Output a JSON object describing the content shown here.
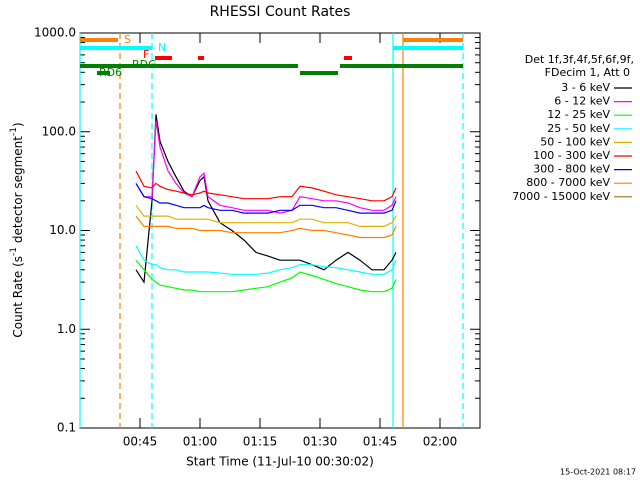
{
  "chart_data": {
    "type": "line",
    "title": "RHESSI Count Rates",
    "xlabel": "Start Time (11-Jul-10 00:30:02)",
    "ylabel": [
      "Count Rate (s",
      "-1",
      " detector segment",
      "-1",
      ")"
    ],
    "ylog": true,
    "xlim": [
      0,
      100
    ],
    "ylim": [
      0.1,
      1000
    ],
    "xticks": [
      {
        "value": 15,
        "label": "00:45"
      },
      {
        "value": 30,
        "label": "01:00"
      },
      {
        "value": 45,
        "label": "01:15"
      },
      {
        "value": 60,
        "label": "01:30"
      },
      {
        "value": 75,
        "label": "01:45"
      },
      {
        "value": 90,
        "label": "02:00"
      }
    ],
    "yticks": [
      {
        "value": 0.1,
        "label": "0.1"
      },
      {
        "value": 1,
        "label": "1.0"
      },
      {
        "value": 10,
        "label": "10.0"
      },
      {
        "value": 100,
        "label": "100.0"
      },
      {
        "value": 1000,
        "label": "1000.0"
      }
    ],
    "legend_header": [
      "Det 1f,3f,4f,5f,6f,9f,",
      "FDecim 1, Att 0"
    ],
    "footer": "15-Oct-2021 08:17",
    "x": [
      14,
      16,
      18,
      19,
      20,
      22,
      24,
      26,
      28,
      30,
      31,
      32,
      35,
      38,
      41,
      44,
      47,
      50,
      53,
      55,
      58,
      61,
      64,
      67,
      70,
      73,
      76,
      78,
      79
    ],
    "series": [
      {
        "name": "3 - 6 keV",
        "color": "#000000",
        "values": [
          4,
          3,
          20,
          150,
          80,
          50,
          35,
          25,
          22,
          32,
          35,
          20,
          12,
          10,
          8,
          6,
          5.5,
          5,
          5,
          5,
          4.5,
          4,
          5,
          6,
          5,
          4,
          4,
          5,
          6
        ]
      },
      {
        "name": "6 - 12 keV",
        "color": "#ff00ff",
        "values": [
          30,
          22,
          22,
          130,
          70,
          40,
          30,
          24,
          22,
          35,
          38,
          22,
          18,
          17,
          16,
          16,
          16,
          15,
          16,
          22,
          21,
          20,
          20,
          19,
          17,
          16,
          16,
          18,
          22
        ]
      },
      {
        "name": "12 - 25 keV",
        "color": "#00ff00",
        "values": [
          5,
          4,
          3.2,
          3,
          2.8,
          2.7,
          2.6,
          2.5,
          2.5,
          2.4,
          2.4,
          2.4,
          2.4,
          2.4,
          2.5,
          2.6,
          2.7,
          3,
          3.3,
          3.8,
          3.5,
          3.2,
          2.9,
          2.7,
          2.5,
          2.4,
          2.4,
          2.6,
          3.2
        ]
      },
      {
        "name": "25 - 50 keV",
        "color": "#00ffff",
        "values": [
          7,
          5,
          4.5,
          4.5,
          4.2,
          4,
          4,
          3.8,
          3.8,
          3.8,
          3.8,
          3.8,
          3.7,
          3.6,
          3.6,
          3.6,
          3.7,
          4,
          4.2,
          4.5,
          4.5,
          4.3,
          4.2,
          4,
          3.8,
          3.6,
          3.6,
          4,
          5
        ]
      },
      {
        "name": "50 - 100 keV",
        "color": "#e0b000",
        "values": [
          18,
          14,
          14,
          14,
          14,
          14,
          13,
          13,
          13,
          13,
          13,
          13,
          12,
          12,
          12,
          12,
          12,
          12,
          12,
          13,
          13,
          12,
          12,
          12,
          11,
          11,
          11,
          12,
          14
        ]
      },
      {
        "name": "100 - 300 keV",
        "color": "#ff0000",
        "values": [
          40,
          28,
          27,
          30,
          28,
          26,
          25,
          24,
          23,
          24,
          25,
          24,
          23,
          22,
          21,
          21,
          21,
          22,
          22,
          28,
          27,
          25,
          23,
          22,
          21,
          20,
          20,
          22,
          27
        ]
      },
      {
        "name": "300 - 800 keV",
        "color": "#0000ff",
        "values": [
          30,
          22,
          21,
          20,
          19,
          19,
          18,
          17,
          17,
          17,
          18,
          17,
          16,
          16,
          15,
          15,
          15,
          16,
          16,
          18,
          18,
          17,
          17,
          16,
          15,
          15,
          15,
          16,
          20
        ]
      },
      {
        "name": "800 - 7000 keV",
        "color": "#ff8000",
        "values": [
          14,
          11,
          11,
          11,
          11,
          11,
          10.5,
          10.5,
          10.5,
          10,
          10,
          10,
          10,
          9.5,
          9.5,
          9.5,
          9.5,
          9.5,
          10,
          10.5,
          10,
          10,
          9.5,
          9,
          8.5,
          8.5,
          8.5,
          9,
          11
        ]
      },
      {
        "name": "7000 - 15000 keV",
        "color": "#a0701a",
        "values": [
          null,
          null,
          null,
          null,
          null,
          null,
          null,
          null,
          null,
          null,
          null,
          null,
          null,
          null,
          null,
          null,
          null,
          null,
          null,
          null,
          null,
          null,
          null,
          null,
          null,
          null,
          null,
          null,
          null
        ]
      }
    ],
    "flags": [
      {
        "label": "S",
        "color": "#ff8000",
        "intervals": [
          [
            0,
            9.5
          ],
          [
            80.75,
            95.75
          ]
        ]
      },
      {
        "label": "N",
        "color": "#00ffff",
        "intervals": [
          [
            0,
            18
          ],
          [
            78.25,
            95.75
          ]
        ]
      },
      {
        "label": "F",
        "color": "#ff0000",
        "intervals": [
          [
            18.75,
            23
          ],
          [
            29.5,
            31
          ],
          [
            66,
            68
          ]
        ]
      },
      {
        "label": "RDG",
        "color": "#008000",
        "intervals": [
          [
            0,
            54.5
          ],
          [
            65,
            95.75
          ]
        ]
      },
      {
        "label": "RD6",
        "color": "#008000",
        "intervals": [
          [
            4.25,
            7.5
          ],
          [
            55,
            64.5
          ]
        ]
      }
    ],
    "vlines": [
      {
        "x": 0,
        "color": "#00ffff",
        "dash": false
      },
      {
        "x": 10,
        "color": "#ff8000",
        "dash": true
      },
      {
        "x": 18,
        "color": "#00ffff",
        "dash": true
      },
      {
        "x": 78.25,
        "color": "#00ffff",
        "dash": false
      },
      {
        "x": 80.75,
        "color": "#ff8000",
        "dash": false
      },
      {
        "x": 95.75,
        "color": "#00ffff",
        "dash": true
      }
    ]
  }
}
